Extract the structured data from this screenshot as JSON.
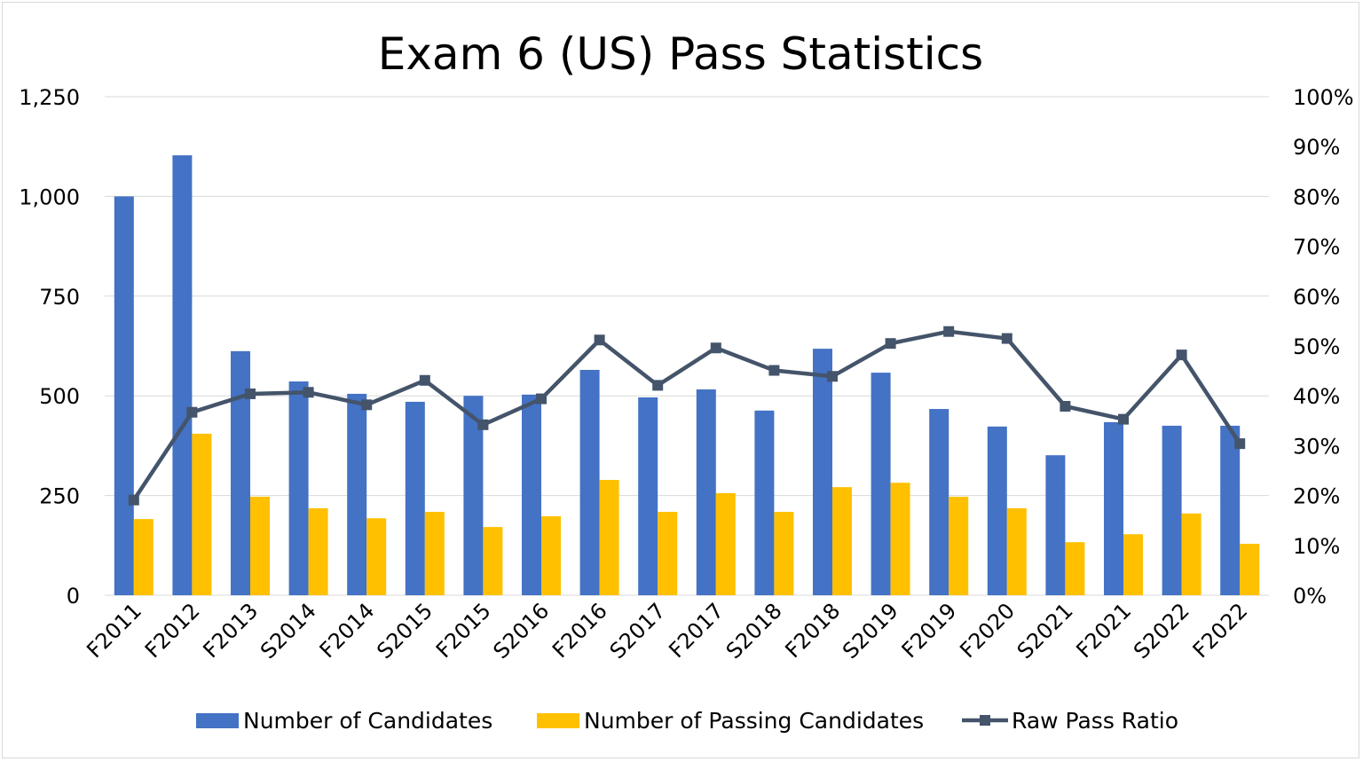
{
  "chart_data": {
    "type": "bar",
    "title": "Exam 6 (US) Pass Statistics",
    "categories": [
      "F2011",
      "F2012",
      "F2013",
      "S2014",
      "F2014",
      "S2015",
      "F2015",
      "S2016",
      "F2016",
      "S2017",
      "F2017",
      "S2018",
      "F2018",
      "S2019",
      "F2019",
      "F2020",
      "S2021",
      "F2021",
      "S2022",
      "F2022"
    ],
    "series": [
      {
        "name": "Number of Candidates",
        "type": "bar",
        "axis": "left",
        "color": "#4472C4",
        "values": [
          1000,
          1103,
          612,
          536,
          505,
          485,
          500,
          503,
          565,
          496,
          516,
          463,
          618,
          558,
          467,
          423,
          351,
          434,
          425,
          425
        ]
      },
      {
        "name": "Number of Passing Candidates",
        "type": "bar",
        "axis": "left",
        "color": "#FFC000",
        "values": [
          191,
          405,
          247,
          218,
          193,
          209,
          171,
          198,
          289,
          209,
          256,
          209,
          271,
          282,
          247,
          218,
          133,
          153,
          205,
          129
        ]
      },
      {
        "name": "Raw Pass Ratio",
        "type": "line",
        "axis": "right",
        "color": "#44546A",
        "marker": "square",
        "values": [
          0.191,
          0.367,
          0.404,
          0.407,
          0.382,
          0.431,
          0.342,
          0.394,
          0.512,
          0.421,
          0.496,
          0.451,
          0.439,
          0.505,
          0.529,
          0.515,
          0.379,
          0.353,
          0.482,
          0.304
        ]
      }
    ],
    "yleft": {
      "lim": [
        0,
        1250
      ],
      "ticks": [
        0,
        250,
        500,
        750,
        1000,
        1250
      ],
      "tick_labels": [
        "0",
        "250",
        "500",
        "750",
        "1,000",
        "1,250"
      ]
    },
    "yright": {
      "lim": [
        0,
        1
      ],
      "ticks": [
        0,
        0.1,
        0.2,
        0.3,
        0.4,
        0.5,
        0.6,
        0.7,
        0.8,
        0.9,
        1
      ],
      "tick_labels": [
        "0%",
        "10%",
        "20%",
        "30%",
        "40%",
        "50%",
        "60%",
        "70%",
        "80%",
        "90%",
        "100%"
      ]
    },
    "grid": true,
    "legend": "bottom"
  }
}
